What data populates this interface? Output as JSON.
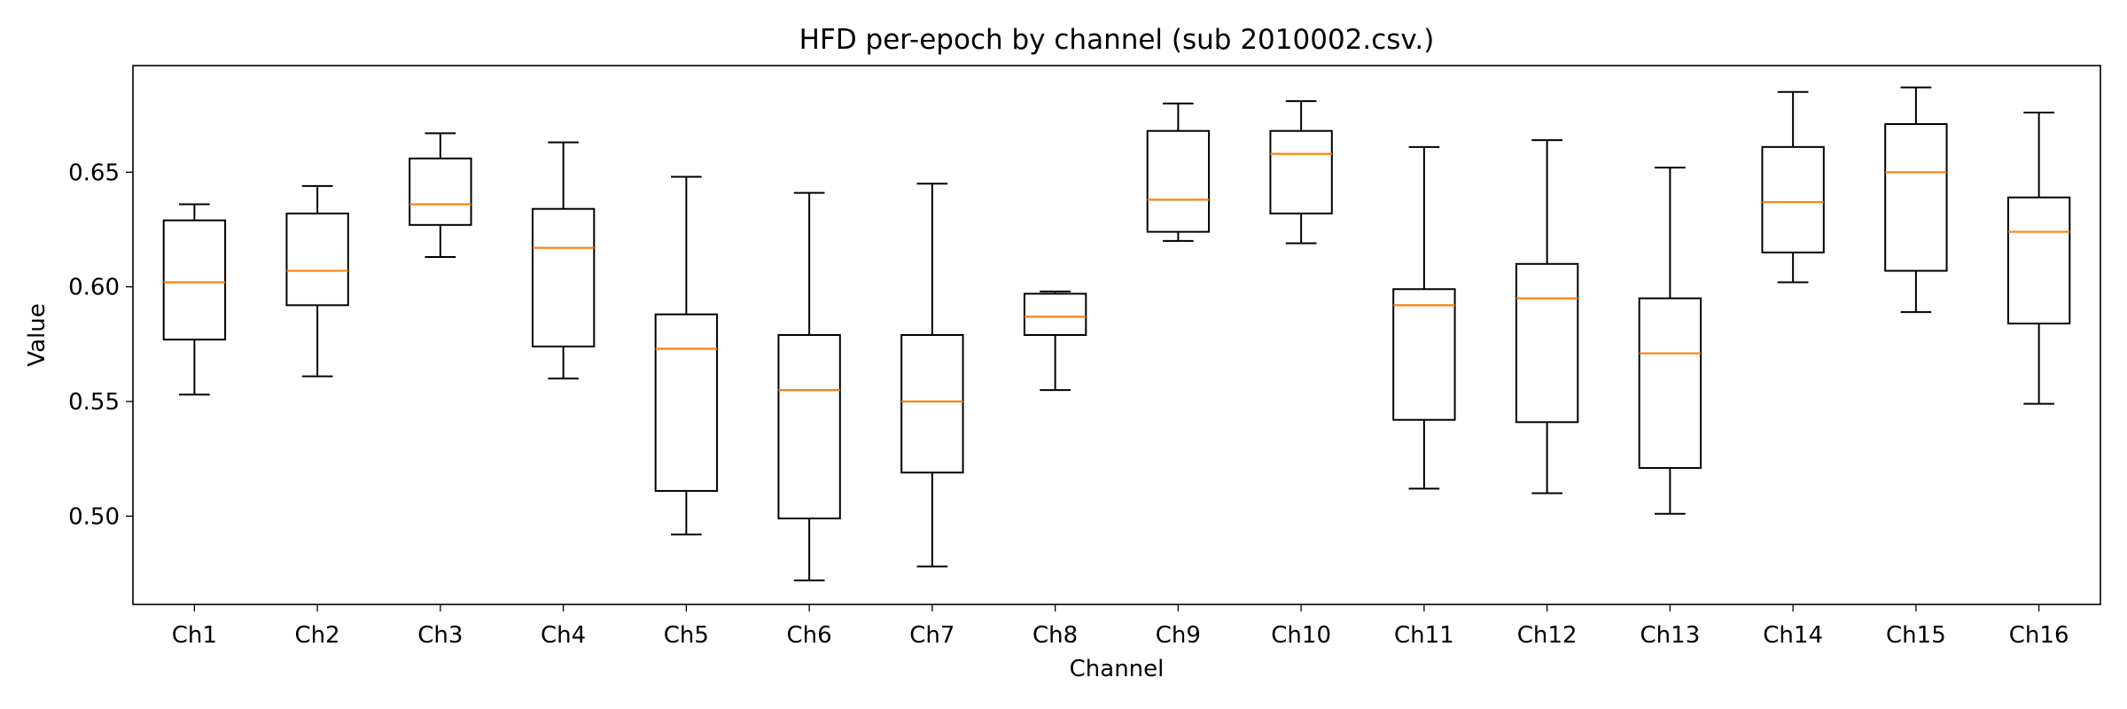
{
  "chart_data": {
    "type": "box",
    "title": "HFD per-epoch by channel (sub 2010002.csv.)",
    "xlabel": "Channel",
    "ylabel": "Value",
    "ylim": [
      0.4615,
      0.6965
    ],
    "yticks": [
      0.5,
      0.55,
      0.6,
      0.65
    ],
    "ytick_labels": [
      "0.50",
      "0.55",
      "0.60",
      "0.65"
    ],
    "grid": false,
    "legend": "none",
    "colors": {
      "box": "#000000",
      "median": "#ff7f0e"
    },
    "categories": [
      "Ch1",
      "Ch2",
      "Ch3",
      "Ch4",
      "Ch5",
      "Ch6",
      "Ch7",
      "Ch8",
      "Ch9",
      "Ch10",
      "Ch11",
      "Ch12",
      "Ch13",
      "Ch14",
      "Ch15",
      "Ch16"
    ],
    "boxes": [
      {
        "whislo": 0.553,
        "q1": 0.577,
        "med": 0.602,
        "q3": 0.629,
        "whishi": 0.636
      },
      {
        "whislo": 0.561,
        "q1": 0.592,
        "med": 0.607,
        "q3": 0.632,
        "whishi": 0.644
      },
      {
        "whislo": 0.613,
        "q1": 0.627,
        "med": 0.636,
        "q3": 0.656,
        "whishi": 0.667
      },
      {
        "whislo": 0.56,
        "q1": 0.574,
        "med": 0.617,
        "q3": 0.634,
        "whishi": 0.663
      },
      {
        "whislo": 0.492,
        "q1": 0.511,
        "med": 0.573,
        "q3": 0.588,
        "whishi": 0.648
      },
      {
        "whislo": 0.472,
        "q1": 0.499,
        "med": 0.555,
        "q3": 0.579,
        "whishi": 0.641
      },
      {
        "whislo": 0.478,
        "q1": 0.519,
        "med": 0.55,
        "q3": 0.579,
        "whishi": 0.645
      },
      {
        "whislo": 0.555,
        "q1": 0.579,
        "med": 0.587,
        "q3": 0.597,
        "whishi": 0.598
      },
      {
        "whislo": 0.62,
        "q1": 0.624,
        "med": 0.638,
        "q3": 0.668,
        "whishi": 0.68
      },
      {
        "whislo": 0.619,
        "q1": 0.632,
        "med": 0.658,
        "q3": 0.668,
        "whishi": 0.681
      },
      {
        "whislo": 0.512,
        "q1": 0.542,
        "med": 0.592,
        "q3": 0.599,
        "whishi": 0.661
      },
      {
        "whislo": 0.51,
        "q1": 0.541,
        "med": 0.595,
        "q3": 0.61,
        "whishi": 0.664
      },
      {
        "whislo": 0.501,
        "q1": 0.521,
        "med": 0.571,
        "q3": 0.595,
        "whishi": 0.652
      },
      {
        "whislo": 0.602,
        "q1": 0.615,
        "med": 0.637,
        "q3": 0.661,
        "whishi": 0.685
      },
      {
        "whislo": 0.589,
        "q1": 0.607,
        "med": 0.65,
        "q3": 0.671,
        "whishi": 0.687
      },
      {
        "whislo": 0.549,
        "q1": 0.584,
        "med": 0.624,
        "q3": 0.639,
        "whishi": 0.676
      }
    ]
  }
}
